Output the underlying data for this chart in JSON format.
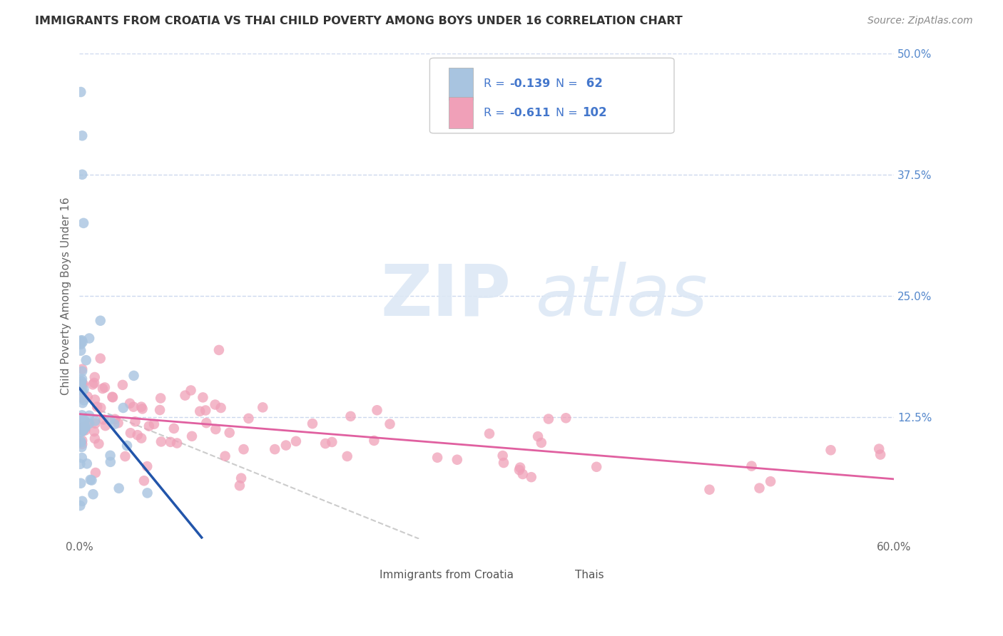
{
  "title": "IMMIGRANTS FROM CROATIA VS THAI CHILD POVERTY AMONG BOYS UNDER 16 CORRELATION CHART",
  "source": "Source: ZipAtlas.com",
  "ylabel": "Child Poverty Among Boys Under 16",
  "xlim": [
    0.0,
    0.6
  ],
  "ylim": [
    0.0,
    0.5
  ],
  "color_croatia": "#a8c4e0",
  "color_thai": "#f0a0b8",
  "color_trend_croatia": "#2255aa",
  "color_trend_thai": "#e060a0",
  "color_trend_dashed": "#cccccc",
  "watermark_zip": "ZIP",
  "watermark_atlas": "atlas",
  "background_color": "#ffffff",
  "grid_color": "#ccd8ee",
  "legend_label_1": "Immigrants from Croatia",
  "legend_label_2": "Thais",
  "legend_r1": "-0.139",
  "legend_n1": "62",
  "legend_r2": "-0.611",
  "legend_n2": "102",
  "legend_text_color": "#4477cc",
  "legend_label_color": "#555555",
  "title_color": "#333333",
  "source_color": "#888888",
  "axis_text_color": "#5588cc"
}
